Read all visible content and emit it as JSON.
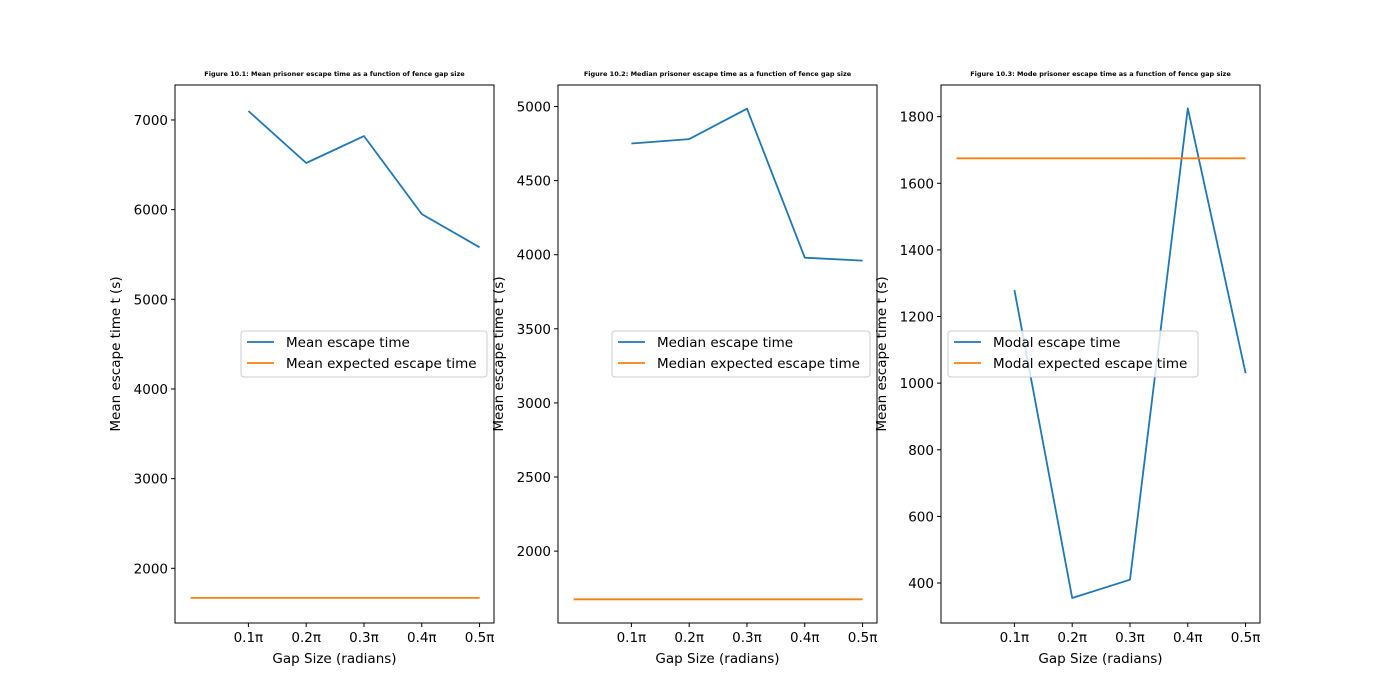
{
  "chart_data": [
    {
      "type": "line",
      "title": "Figure 10.1: Mean prisoner escape time as a function of fence gap size",
      "xlabel": "Gap Size (radians)",
      "ylabel": "Mean escape time t (s)",
      "x": [
        0.1,
        0.2,
        0.3,
        0.4,
        0.5
      ],
      "x_tick_labels": [
        "0.1π",
        "0.2π",
        "0.3π",
        "0.4π",
        "0.5π"
      ],
      "xlim": [
        -0.027,
        0.525
      ],
      "ylim": [
        1390,
        7390
      ],
      "y_ticks": [
        2000,
        3000,
        4000,
        5000,
        6000,
        7000
      ],
      "series": [
        {
          "name": "Mean escape time",
          "color": "#1f77b4",
          "points": [
            [
              0.1,
              7100
            ],
            [
              0.2,
              6520
            ],
            [
              0.3,
              6820
            ],
            [
              0.4,
              5950
            ],
            [
              0.5,
              5580
            ]
          ]
        },
        {
          "name": "Mean expected escape time",
          "color": "#ff7f0e",
          "points": [
            [
              0.0,
              1670
            ],
            [
              0.5,
              1670
            ]
          ]
        }
      ],
      "legend": "center-right",
      "grid": false
    },
    {
      "type": "line",
      "title": "Figure 10.2: Median prisoner escape time as a function of fence gap size",
      "xlabel": "Gap Size (radians)",
      "ylabel": "Mean escape time t (s)",
      "x": [
        0.1,
        0.2,
        0.3,
        0.4,
        0.5
      ],
      "x_tick_labels": [
        "0.1π",
        "0.2π",
        "0.3π",
        "0.4π",
        "0.5π"
      ],
      "xlim": [
        -0.027,
        0.525
      ],
      "ylim": [
        1515,
        5145
      ],
      "y_ticks": [
        2000,
        2500,
        3000,
        3500,
        4000,
        4500,
        5000
      ],
      "series": [
        {
          "name": "Median escape time",
          "color": "#1f77b4",
          "points": [
            [
              0.1,
              4750
            ],
            [
              0.2,
              4780
            ],
            [
              0.3,
              4985
            ],
            [
              0.4,
              3980
            ],
            [
              0.5,
              3960
            ]
          ]
        },
        {
          "name": "Median expected escape time",
          "color": "#ff7f0e",
          "points": [
            [
              0.0,
              1675
            ],
            [
              0.5,
              1675
            ]
          ]
        }
      ],
      "legend": "center-right",
      "grid": false
    },
    {
      "type": "line",
      "title": "Figure 10.3: Mode prisoner escape time as a function of fence gap size",
      "xlabel": "Gap Size (radians)",
      "ylabel": "Mean escape time t (s)",
      "x": [
        0.1,
        0.2,
        0.3,
        0.4,
        0.5
      ],
      "x_tick_labels": [
        "0.1π",
        "0.2π",
        "0.3π",
        "0.4π",
        "0.5π"
      ],
      "xlim": [
        -0.027,
        0.525
      ],
      "ylim": [
        280,
        1895
      ],
      "y_ticks": [
        400,
        600,
        800,
        1000,
        1200,
        1400,
        1600,
        1800
      ],
      "series": [
        {
          "name": "Modal escape time",
          "color": "#1f77b4",
          "points": [
            [
              0.1,
              1280
            ],
            [
              0.2,
              355
            ],
            [
              0.3,
              410
            ],
            [
              0.4,
              1825
            ],
            [
              0.5,
              1030
            ]
          ]
        },
        {
          "name": "Modal expected escape time",
          "color": "#ff7f0e",
          "points": [
            [
              0.0,
              1675
            ],
            [
              0.5,
              1675
            ]
          ]
        }
      ],
      "legend": "center",
      "grid": false
    }
  ]
}
